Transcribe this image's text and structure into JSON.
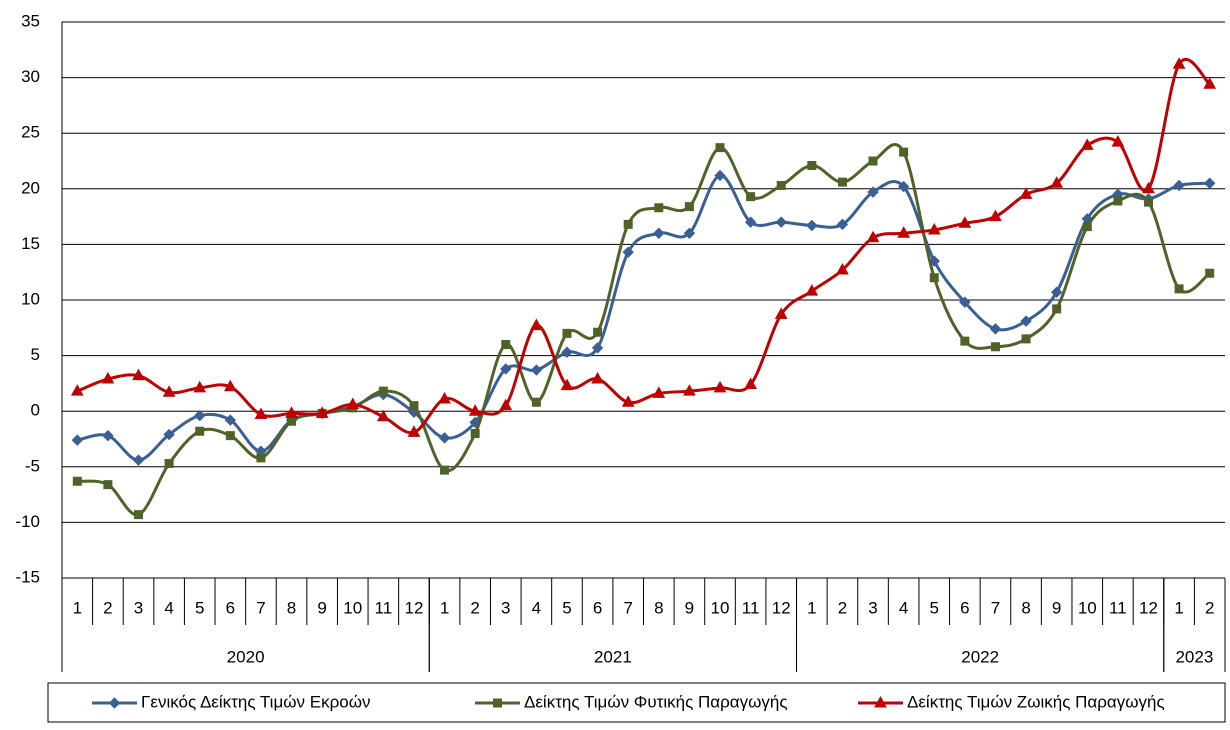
{
  "chart_data": {
    "type": "line",
    "smooth": true,
    "categories": [
      "1",
      "2",
      "3",
      "4",
      "5",
      "6",
      "7",
      "8",
      "9",
      "10",
      "11",
      "12",
      "1",
      "2",
      "3",
      "4",
      "5",
      "6",
      "7",
      "8",
      "9",
      "10",
      "11",
      "12",
      "1",
      "2",
      "3",
      "4",
      "5",
      "6",
      "7",
      "8",
      "9",
      "10",
      "11",
      "12",
      "1",
      "2"
    ],
    "groups": [
      {
        "label": "2020",
        "size": 12
      },
      {
        "label": "2021",
        "size": 12
      },
      {
        "label": "2022",
        "size": 12
      },
      {
        "label": "2023",
        "size": 2
      }
    ],
    "ylim": [
      -15,
      35
    ],
    "yticks": [
      -15,
      -10,
      -5,
      0,
      5,
      10,
      15,
      20,
      25,
      30,
      35
    ],
    "grid": true,
    "legend": "bottom",
    "series": [
      {
        "name": "Γενικός Δείκτης Τιμών Εκροών",
        "color": "#3a5f97",
        "marker": "diamond",
        "values": [
          -2.6,
          -2.2,
          -4.4,
          -2.1,
          -0.4,
          -0.8,
          -3.6,
          -0.8,
          -0.2,
          0.4,
          1.5,
          -0.1,
          -2.4,
          -1.0,
          3.8,
          3.7,
          5.3,
          5.7,
          14.3,
          16.0,
          16.0,
          21.2,
          17.0,
          17.0,
          16.7,
          16.8,
          19.7,
          20.2,
          13.5,
          9.8,
          7.4,
          8.1,
          10.7,
          17.3,
          19.5,
          19.1,
          20.3,
          20.5
        ]
      },
      {
        "name": "Δείκτης Τιμών Φυτικής Παραγωγής",
        "color": "#4f6228",
        "marker": "square",
        "values": [
          -6.3,
          -6.6,
          -9.3,
          -4.7,
          -1.8,
          -2.2,
          -4.2,
          -0.9,
          -0.2,
          0.3,
          1.8,
          0.5,
          -5.3,
          -2.0,
          6.0,
          0.8,
          7.0,
          7.1,
          16.8,
          18.3,
          18.4,
          23.7,
          19.3,
          20.3,
          22.1,
          20.6,
          22.5,
          23.3,
          12.0,
          6.3,
          5.8,
          6.5,
          9.2,
          16.6,
          18.9,
          18.8,
          11.0,
          12.4
        ]
      },
      {
        "name": "Δείκτης Τιμών Ζωικής Παραγωγής",
        "color": "#c00000",
        "marker": "triangle",
        "values": [
          1.8,
          2.9,
          3.2,
          1.7,
          2.1,
          2.2,
          -0.3,
          -0.2,
          -0.2,
          0.6,
          -0.5,
          -1.9,
          1.1,
          0.0,
          0.5,
          7.7,
          2.3,
          2.9,
          0.8,
          1.6,
          1.8,
          2.1,
          2.4,
          8.7,
          10.8,
          12.7,
          15.6,
          16.0,
          16.3,
          16.9,
          17.5,
          19.5,
          20.5,
          23.9,
          24.2,
          20.0,
          31.2,
          29.4
        ]
      }
    ]
  }
}
